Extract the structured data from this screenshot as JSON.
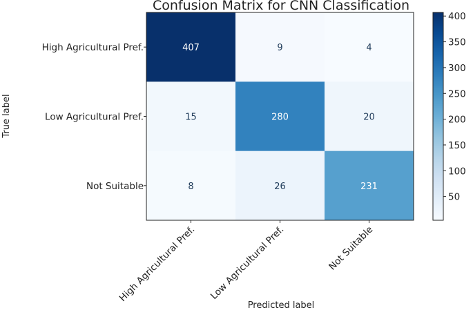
{
  "chart_data": {
    "type": "heatmap",
    "title": "Confusion Matrix for CNN Classification",
    "xlabel": "Predicted label",
    "ylabel": "True label",
    "x_categories": [
      "High Agricultural Pref.",
      "Low Agricultural Pref.",
      "Not Suitable"
    ],
    "y_categories": [
      "High Agricultural Pref.",
      "Low Agricultural Pref.",
      "Not Suitable"
    ],
    "values": [
      [
        407,
        9,
        4
      ],
      [
        15,
        280,
        20
      ],
      [
        8,
        26,
        231
      ]
    ],
    "colormap": "Blues",
    "colorbar": {
      "range": [
        4,
        407
      ],
      "ticks": [
        50,
        100,
        150,
        200,
        250,
        300,
        350,
        400
      ]
    },
    "colors": {
      "low": "#f7fbff",
      "high": "#08306b"
    }
  }
}
